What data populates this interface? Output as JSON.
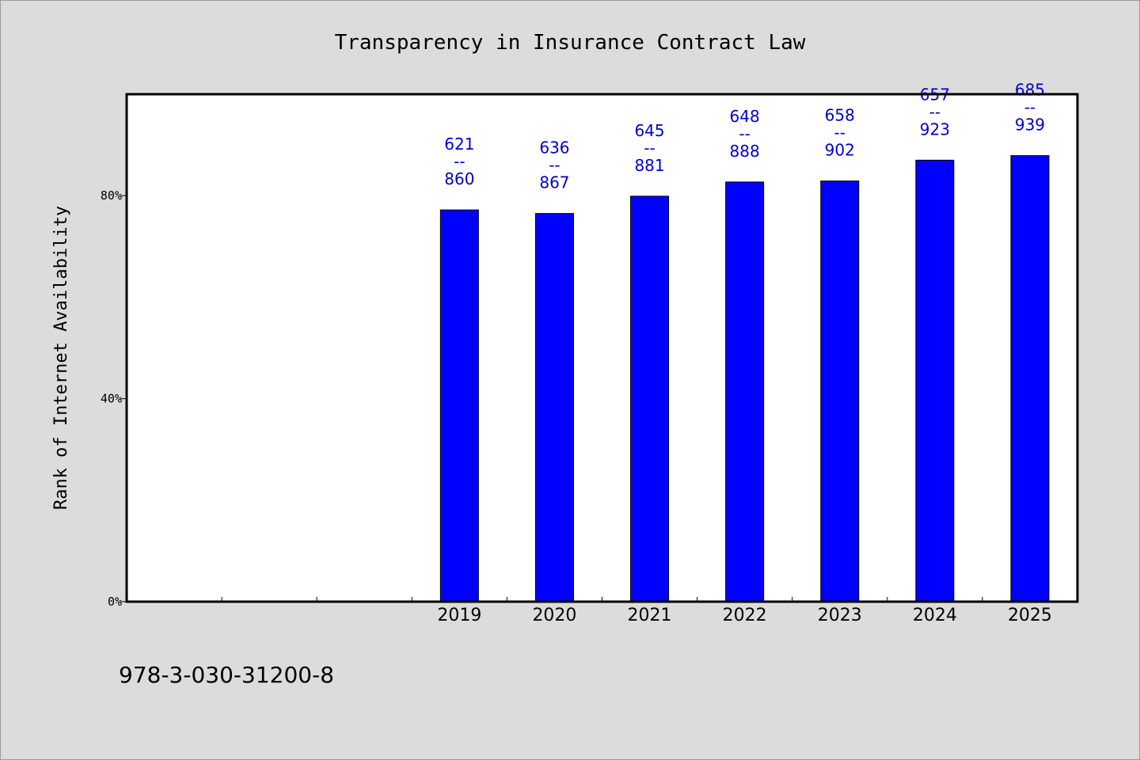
{
  "chart_data": {
    "type": "bar",
    "title": "Transparency in Insurance Contract Law",
    "xlabel": "",
    "ylabel": "Rank of Internet Availability",
    "ylim": [
      0,
      100
    ],
    "yticks": [
      {
        "value": 0,
        "label": "0%"
      },
      {
        "value": 40,
        "label": "40%"
      },
      {
        "value": 80,
        "label": "80%"
      }
    ],
    "category_slots": 10,
    "categories": [
      "2019",
      "2020",
      "2021",
      "2022",
      "2023",
      "2024",
      "2025"
    ],
    "first_category_slot": 3,
    "values": [
      77.2,
      76.5,
      79.9,
      82.7,
      82.9,
      87.0,
      87.9
    ],
    "data_labels": [
      {
        "top": "621",
        "sep": "--",
        "bottom": "860"
      },
      {
        "top": "636",
        "sep": "--",
        "bottom": "867"
      },
      {
        "top": "645",
        "sep": "--",
        "bottom": "881"
      },
      {
        "top": "648",
        "sep": "--",
        "bottom": "888"
      },
      {
        "top": "658",
        "sep": "--",
        "bottom": "902"
      },
      {
        "top": "657",
        "sep": "--",
        "bottom": "923"
      },
      {
        "top": "685",
        "sep": "--",
        "bottom": "939"
      }
    ],
    "bar_color": "#0000ff",
    "label_color": "#0000cc",
    "grid": false,
    "legend": "none"
  },
  "footnote": "978-3-030-31200-8"
}
